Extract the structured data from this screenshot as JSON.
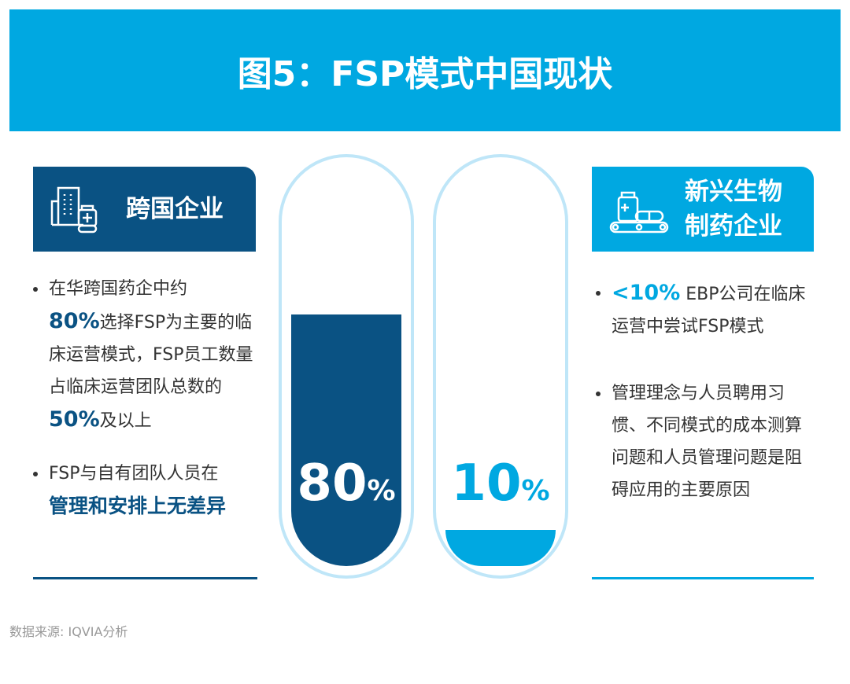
{
  "title": "图5：FSP模式中国现状",
  "left": {
    "heading": "跨国企业",
    "icon": "building-medicine-icon",
    "color": "#0a5283",
    "b1": {
      "t1": "在华跨国药企中约",
      "e1": "80%",
      "t2": "选择FSP为主要的临床运营模式，FSP员工数量占临床运营团队总数的",
      "e2": "50%",
      "t3": "及以上"
    },
    "b2": {
      "t1": "FSP与自有团队人员在",
      "e1": "管理和安排上无差异"
    }
  },
  "right": {
    "heading1": "新兴生物",
    "heading2": "制药企业",
    "icon": "medicine-conveyor-icon",
    "color": "#00a8e1",
    "b1": {
      "e1": "<10%",
      "t1": " EBP公司在临床运营中尝试FSP模式"
    },
    "b2": {
      "t1": "管理理念与人员聘用习惯、不同模式的成本测算问题和人员管理问题是阻碍应用的主要原因"
    }
  },
  "gauges": [
    {
      "value": 80,
      "num": "80",
      "unit": "%",
      "color": "#0a5283"
    },
    {
      "value": 10,
      "num": "10",
      "unit": "%",
      "color": "#00a8e1"
    }
  ],
  "source": "数据来源: IQVIA分析"
}
